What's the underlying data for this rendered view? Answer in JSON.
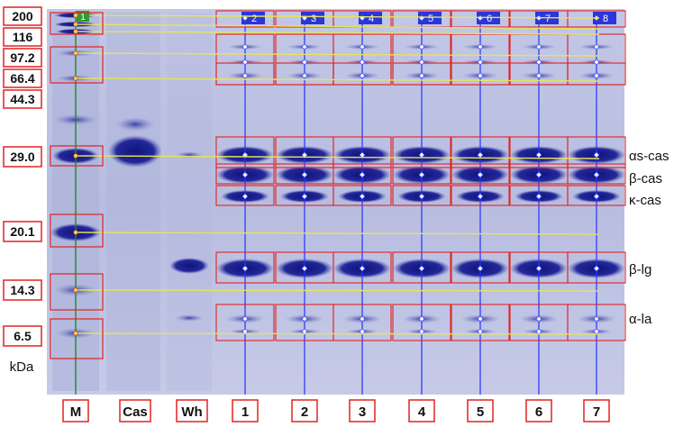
{
  "mw_markers": [
    "200",
    "116",
    "97.2",
    "66.4",
    "44.3",
    "29.0",
    "20.1",
    "14.3",
    "6.5"
  ],
  "mw_unit": "kDa",
  "bottom_lanes": [
    "M",
    "Cas",
    "Wh",
    "1",
    "2",
    "3",
    "4",
    "5",
    "6",
    "7"
  ],
  "top_lane_numbers": [
    "1",
    "2",
    "3",
    "4",
    "5",
    "6",
    "7",
    "8"
  ],
  "band_labels": [
    "αs-cas",
    "β-cas",
    "κ-cas",
    "β-lg",
    "α-la"
  ],
  "colors": {
    "gel_background": "#b9bedf",
    "band": "#1c1f8c",
    "detection_box": "#e22222",
    "lane_line": "#2233ff",
    "marker_line": "#e7e35a",
    "marker_lane_line": "#1f8a1f",
    "label_box": "#e22222"
  }
}
